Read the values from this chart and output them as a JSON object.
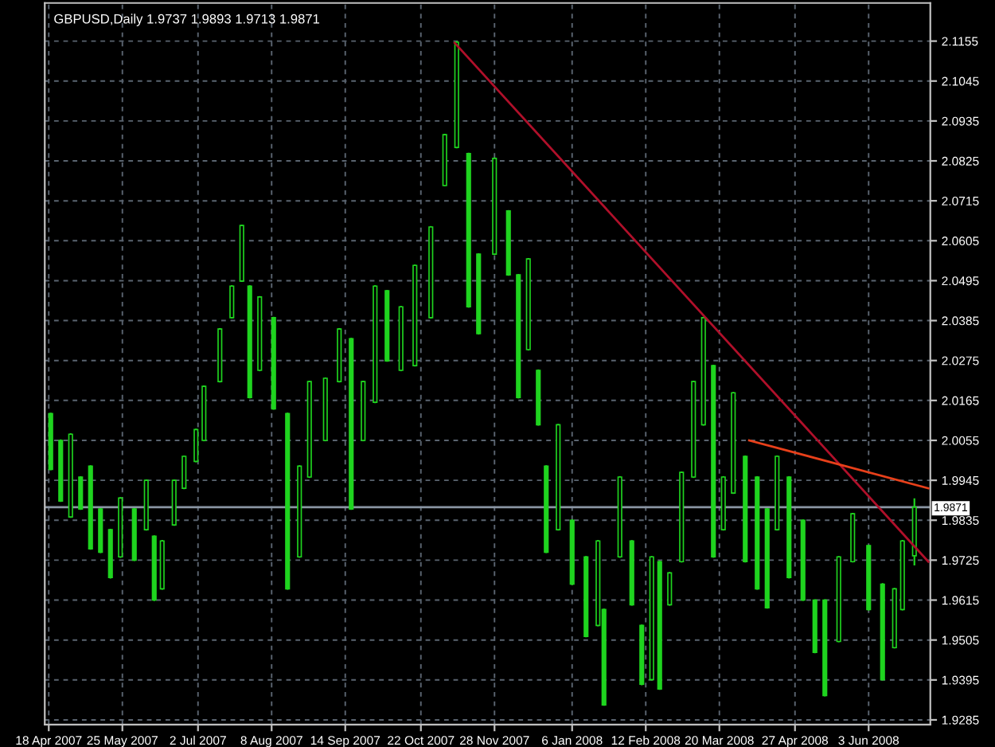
{
  "chart_data": {
    "type": "candlestick",
    "title": "GBPUSD,Daily 1.9737 1.9893 1.9713 1.9871",
    "color": "#1fd41f",
    "x": [
      "2007-04-19",
      "2007-04-24",
      "2007-04-29",
      "2007-05-04",
      "2007-05-09",
      "2007-05-14",
      "2007-05-19",
      "2007-05-24",
      "2007-05-31",
      "2007-06-06",
      "2007-06-10",
      "2007-06-14",
      "2007-06-20",
      "2007-06-25",
      "2007-07-01",
      "2007-07-05",
      "2007-07-13",
      "2007-07-19",
      "2007-07-24",
      "2007-07-28",
      "2007-08-02",
      "2007-08-09",
      "2007-08-16",
      "2007-08-22",
      "2007-08-27",
      "2007-09-04",
      "2007-09-11",
      "2007-09-17",
      "2007-09-23",
      "2007-09-29",
      "2007-10-05",
      "2007-10-12",
      "2007-10-19",
      "2007-10-27",
      "2007-11-03",
      "2007-11-09",
      "2007-11-15",
      "2007-11-20",
      "2007-11-28",
      "2007-12-05",
      "2007-12-10",
      "2007-12-15",
      "2007-12-20",
      "2007-12-24",
      "2007-12-30",
      "2008-01-06",
      "2008-01-13",
      "2008-01-19",
      "2008-01-22",
      "2008-01-30",
      "2008-02-05",
      "2008-02-10",
      "2008-02-15",
      "2008-02-19",
      "2008-02-24",
      "2008-03-01",
      "2008-03-07",
      "2008-03-12",
      "2008-03-17",
      "2008-03-22",
      "2008-03-27",
      "2008-04-02",
      "2008-04-08",
      "2008-04-13",
      "2008-04-18",
      "2008-04-24",
      "2008-05-01",
      "2008-05-07",
      "2008-05-12",
      "2008-05-19",
      "2008-05-26",
      "2008-06-03",
      "2008-06-10",
      "2008-06-16",
      "2008-06-20",
      "2008-06-26"
    ],
    "ohlc": [
      [
        2.0129,
        2.0129,
        1.9975,
        1.9975
      ],
      [
        2.0055,
        2.0055,
        1.9888,
        1.9888
      ],
      [
        1.9844,
        2.0072,
        1.9844,
        2.0072
      ],
      [
        1.9954,
        1.9954,
        1.9866,
        1.9866
      ],
      [
        1.9984,
        1.9984,
        1.9756,
        1.9756
      ],
      [
        1.9866,
        1.9866,
        1.9747,
        1.9747
      ],
      [
        1.9809,
        1.9809,
        1.9677,
        1.9677
      ],
      [
        1.9734,
        1.9896,
        1.9734,
        1.9896
      ],
      [
        1.9866,
        1.9866,
        1.9725,
        1.9725
      ],
      [
        1.9809,
        1.9945,
        1.9809,
        1.9945
      ],
      [
        1.9791,
        1.9791,
        1.9615,
        1.9615
      ],
      [
        1.9646,
        1.9778,
        1.9646,
        1.9778
      ],
      [
        1.9822,
        1.9945,
        1.9822,
        1.9945
      ],
      [
        1.9923,
        2.0011,
        1.9923,
        2.0011
      ],
      [
        1.9997,
        2.0085,
        1.9997,
        2.0085
      ],
      [
        2.0055,
        2.0204,
        2.0055,
        2.0204
      ],
      [
        2.0217,
        2.0362,
        2.0217,
        2.0362
      ],
      [
        2.0393,
        2.048,
        2.0393,
        2.048
      ],
      [
        2.0494,
        2.0647,
        2.0494,
        2.0647
      ],
      [
        2.048,
        2.048,
        2.0173,
        2.0173
      ],
      [
        2.0248,
        2.045,
        2.0248,
        2.045
      ],
      [
        2.0393,
        2.0393,
        2.0142,
        2.0142
      ],
      [
        2.0129,
        2.0129,
        1.9646,
        1.9646
      ],
      [
        1.9734,
        1.9984,
        1.9734,
        1.9984
      ],
      [
        1.9954,
        2.0217,
        1.9954,
        2.0217
      ],
      [
        2.0055,
        2.0226,
        2.0055,
        2.0226
      ],
      [
        2.0217,
        2.0362,
        2.0217,
        2.0362
      ],
      [
        2.0335,
        2.0335,
        1.9866,
        1.9866
      ],
      [
        2.0055,
        2.0217,
        2.0055,
        2.0217
      ],
      [
        2.016,
        2.048,
        2.016,
        2.048
      ],
      [
        2.0467,
        2.0467,
        2.0274,
        2.0274
      ],
      [
        2.0248,
        2.0423,
        2.0248,
        2.0423
      ],
      [
        2.0261,
        2.0537,
        2.0261,
        2.0537
      ],
      [
        2.0393,
        2.0643,
        2.0393,
        2.0643
      ],
      [
        2.0757,
        2.0897,
        2.0757,
        2.0897
      ],
      [
        2.0862,
        2.1152,
        2.0862,
        2.1152
      ],
      [
        2.0845,
        2.0845,
        2.0423,
        2.0423
      ],
      [
        2.0568,
        2.0568,
        2.0349,
        2.0349
      ],
      [
        2.0568,
        2.0832,
        2.0568,
        2.0832
      ],
      [
        2.0687,
        2.0687,
        2.0511,
        2.0511
      ],
      [
        2.0511,
        2.0511,
        2.0173,
        2.0173
      ],
      [
        2.0305,
        2.0555,
        2.0305,
        2.0555
      ],
      [
        2.0248,
        2.0248,
        2.0098,
        2.0098
      ],
      [
        1.9984,
        1.9984,
        1.9747,
        1.9747
      ],
      [
        1.9809,
        2.0098,
        1.9809,
        2.0098
      ],
      [
        1.9835,
        1.9835,
        1.9659,
        1.9659
      ],
      [
        1.9734,
        1.9734,
        1.9515,
        1.9515
      ],
      [
        1.9545,
        1.9778,
        1.9545,
        1.9778
      ],
      [
        1.9589,
        1.9589,
        1.9326,
        1.9326
      ],
      [
        1.9734,
        1.9954,
        1.9734,
        1.9954
      ],
      [
        1.9778,
        1.9778,
        1.9602,
        1.9602
      ],
      [
        1.9545,
        1.9545,
        1.9383,
        1.9383
      ],
      [
        1.9396,
        1.9734,
        1.9396,
        1.9734
      ],
      [
        1.9721,
        1.9721,
        1.937,
        1.937
      ],
      [
        1.9602,
        1.969,
        1.9602,
        1.969
      ],
      [
        1.9721,
        1.9967,
        1.9721,
        1.9967
      ],
      [
        1.9954,
        2.0217,
        1.9954,
        2.0217
      ],
      [
        2.0098,
        2.0393,
        2.0098,
        2.0393
      ],
      [
        2.0261,
        2.0261,
        1.9734,
        1.9734
      ],
      [
        1.9809,
        1.9954,
        1.9809,
        1.9954
      ],
      [
        1.991,
        2.0186,
        1.991,
        2.0186
      ],
      [
        2.0011,
        2.0011,
        1.9721,
        1.9721
      ],
      [
        1.9954,
        1.9954,
        1.9646,
        1.9646
      ],
      [
        1.9866,
        1.9866,
        1.9594,
        1.9594
      ],
      [
        1.9809,
        2.0011,
        1.9809,
        2.0011
      ],
      [
        1.9954,
        1.9954,
        1.9677,
        1.9677
      ],
      [
        1.9835,
        1.9835,
        1.9615,
        1.9615
      ],
      [
        1.9615,
        1.9615,
        1.9471,
        1.9471
      ],
      [
        1.9615,
        1.9615,
        1.9352,
        1.9352
      ],
      [
        1.9501,
        1.9734,
        1.9501,
        1.9734
      ],
      [
        1.9721,
        1.9853,
        1.9721,
        1.9853
      ],
      [
        1.9765,
        1.9765,
        1.9589,
        1.9589
      ],
      [
        1.9659,
        1.9659,
        1.9396,
        1.9396
      ],
      [
        1.9484,
        1.9646,
        1.9484,
        1.9646
      ],
      [
        1.9589,
        1.9778,
        1.9589,
        1.9778
      ],
      [
        1.9737,
        1.9893,
        1.9713,
        1.9871
      ]
    ],
    "series": [
      {
        "type": "line",
        "color": "#b0102a",
        "x": [
          "2007-11-08",
          "2008-07-03"
        ],
        "values": [
          2.115,
          1.9721
        ]
      },
      {
        "type": "line",
        "color": "#e8401a",
        "x": [
          "2008-04-04",
          "2008-07-03"
        ],
        "values": [
          2.0055,
          1.9923
        ]
      }
    ],
    "ref_lines": [
      {
        "axis": "y",
        "value": 1.9871,
        "label": "1.9871",
        "color": "#8a95a3"
      }
    ],
    "xlim": [
      "2007-04-16",
      "2008-07-04"
    ],
    "xticks": [
      {
        "value": "2007-04-18",
        "label": "18 Apr 2007"
      },
      {
        "value": "2007-05-25",
        "label": "25 May 2007"
      },
      {
        "value": "2007-07-02",
        "label": "2 Jul 2007"
      },
      {
        "value": "2007-08-08",
        "label": "8 Aug 2007"
      },
      {
        "value": "2007-09-14",
        "label": "14 Sep 2007"
      },
      {
        "value": "2007-10-22",
        "label": "22 Oct 2007"
      },
      {
        "value": "2007-11-28",
        "label": "28 Nov 2007"
      },
      {
        "value": "2008-01-06",
        "label": "6 Jan 2008"
      },
      {
        "value": "2008-02-12",
        "label": "12 Feb 2008"
      },
      {
        "value": "2008-03-20",
        "label": "20 Mar 2008"
      },
      {
        "value": "2008-04-27",
        "label": "27 Apr 2008"
      },
      {
        "value": "2008-06-03",
        "label": "3 Jun 2008"
      }
    ],
    "ylim": [
      1.9272,
      2.126
    ],
    "yticks": [
      1.9285,
      1.9395,
      1.9505,
      1.9615,
      1.9725,
      1.9835,
      1.9945,
      2.0055,
      2.0165,
      2.0275,
      2.0385,
      2.0495,
      2.0605,
      2.0715,
      2.0825,
      2.0935,
      2.1045,
      2.1155
    ],
    "grid": true
  }
}
